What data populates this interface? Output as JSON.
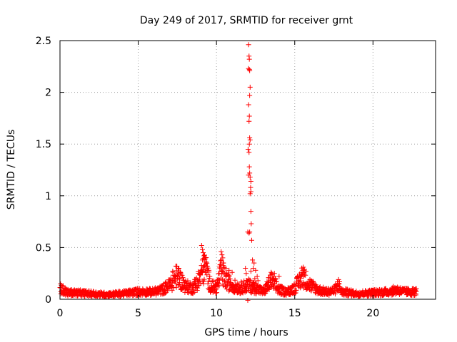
{
  "chart_data": {
    "type": "scatter",
    "title": "Day 249 of 2017, SRMTID for receiver grnt",
    "xlabel": "GPS time / hours",
    "ylabel": "SRMTID / TECUs",
    "xlim": [
      0,
      24
    ],
    "ylim": [
      0,
      2.5
    ],
    "x_ticks": [
      0,
      5,
      10,
      15,
      20
    ],
    "x_tick_labels": [
      "0",
      "5",
      "10",
      "15",
      "20"
    ],
    "y_ticks": [
      0,
      0.5,
      1,
      1.5,
      2,
      2.5
    ],
    "y_tick_labels": [
      "0",
      "0.5",
      "1",
      "1.5",
      "2",
      "2.5"
    ],
    "grid": true,
    "marker": "+",
    "color": "#ff0000",
    "series": [
      {
        "name": "SRMTID",
        "baseline_profile": [
          [
            0.0,
            0.12
          ],
          [
            0.5,
            0.07
          ],
          [
            1.0,
            0.07
          ],
          [
            2.0,
            0.06
          ],
          [
            3.0,
            0.05
          ],
          [
            4.0,
            0.06
          ],
          [
            5.0,
            0.08
          ],
          [
            6.0,
            0.08
          ],
          [
            6.5,
            0.1
          ],
          [
            7.0,
            0.15
          ],
          [
            7.5,
            0.25
          ],
          [
            8.0,
            0.14
          ],
          [
            8.5,
            0.12
          ],
          [
            9.0,
            0.25
          ],
          [
            9.3,
            0.35
          ],
          [
            9.6,
            0.15
          ],
          [
            10.0,
            0.12
          ],
          [
            10.3,
            0.3
          ],
          [
            10.6,
            0.2
          ],
          [
            11.0,
            0.15
          ],
          [
            11.5,
            0.12
          ],
          [
            12.0,
            0.15
          ],
          [
            12.5,
            0.12
          ],
          [
            13.0,
            0.08
          ],
          [
            13.5,
            0.2
          ],
          [
            14.0,
            0.1
          ],
          [
            14.5,
            0.08
          ],
          [
            15.0,
            0.12
          ],
          [
            15.5,
            0.25
          ],
          [
            16.0,
            0.15
          ],
          [
            16.5,
            0.1
          ],
          [
            17.0,
            0.08
          ],
          [
            17.5,
            0.09
          ],
          [
            17.8,
            0.15
          ],
          [
            18.0,
            0.08
          ],
          [
            19.0,
            0.06
          ],
          [
            20.0,
            0.07
          ],
          [
            21.0,
            0.08
          ],
          [
            21.5,
            0.1
          ],
          [
            22.0,
            0.08
          ],
          [
            22.8,
            0.08
          ]
        ],
        "spike_points": [
          [
            12.05,
            2.46
          ],
          [
            12.08,
            2.35
          ],
          [
            12.1,
            2.32
          ],
          [
            12.05,
            2.23
          ],
          [
            12.1,
            2.22
          ],
          [
            12.12,
            2.21
          ],
          [
            12.15,
            2.05
          ],
          [
            12.12,
            1.97
          ],
          [
            12.05,
            1.88
          ],
          [
            12.1,
            1.77
          ],
          [
            12.08,
            1.72
          ],
          [
            12.12,
            1.56
          ],
          [
            12.15,
            1.54
          ],
          [
            12.1,
            1.5
          ],
          [
            12.02,
            1.45
          ],
          [
            12.08,
            1.42
          ],
          [
            12.1,
            1.28
          ],
          [
            12.12,
            1.22
          ],
          [
            12.05,
            1.2
          ],
          [
            12.15,
            1.18
          ],
          [
            12.2,
            1.14
          ],
          [
            12.18,
            1.08
          ],
          [
            12.2,
            1.04
          ],
          [
            12.15,
            1.02
          ],
          [
            12.2,
            0.85
          ],
          [
            12.22,
            0.73
          ],
          [
            12.0,
            0.65
          ],
          [
            12.08,
            0.64
          ],
          [
            12.12,
            0.65
          ],
          [
            12.25,
            0.57
          ],
          [
            12.3,
            0.38
          ],
          [
            12.4,
            0.35
          ],
          [
            12.35,
            0.3
          ],
          [
            12.5,
            0.28
          ],
          [
            12.2,
            0.27
          ],
          [
            12.6,
            0.22
          ],
          [
            12.45,
            0.2
          ],
          [
            12.65,
            0.18
          ],
          [
            12.55,
            0.15
          ],
          [
            12.3,
            0.14
          ],
          [
            11.95,
            0.18
          ],
          [
            11.9,
            0.25
          ],
          [
            11.85,
            0.3
          ],
          [
            12.5,
            0.1
          ],
          [
            12.0,
            -0.01
          ]
        ],
        "peak_points": [
          [
            9.05,
            0.52
          ],
          [
            9.1,
            0.48
          ],
          [
            9.15,
            0.45
          ],
          [
            9.2,
            0.42
          ],
          [
            9.3,
            0.4
          ],
          [
            9.1,
            0.38
          ],
          [
            9.25,
            0.36
          ],
          [
            9.35,
            0.32
          ],
          [
            10.3,
            0.46
          ],
          [
            10.35,
            0.43
          ],
          [
            10.4,
            0.4
          ],
          [
            10.45,
            0.35
          ],
          [
            10.6,
            0.3
          ],
          [
            10.8,
            0.28
          ],
          [
            7.4,
            0.32
          ],
          [
            7.6,
            0.3
          ],
          [
            7.2,
            0.27
          ],
          [
            15.55,
            0.31
          ],
          [
            15.6,
            0.28
          ],
          [
            13.7,
            0.25
          ],
          [
            14.0,
            0.22
          ],
          [
            17.8,
            0.19
          ],
          [
            11.0,
            0.26
          ]
        ]
      }
    ]
  }
}
